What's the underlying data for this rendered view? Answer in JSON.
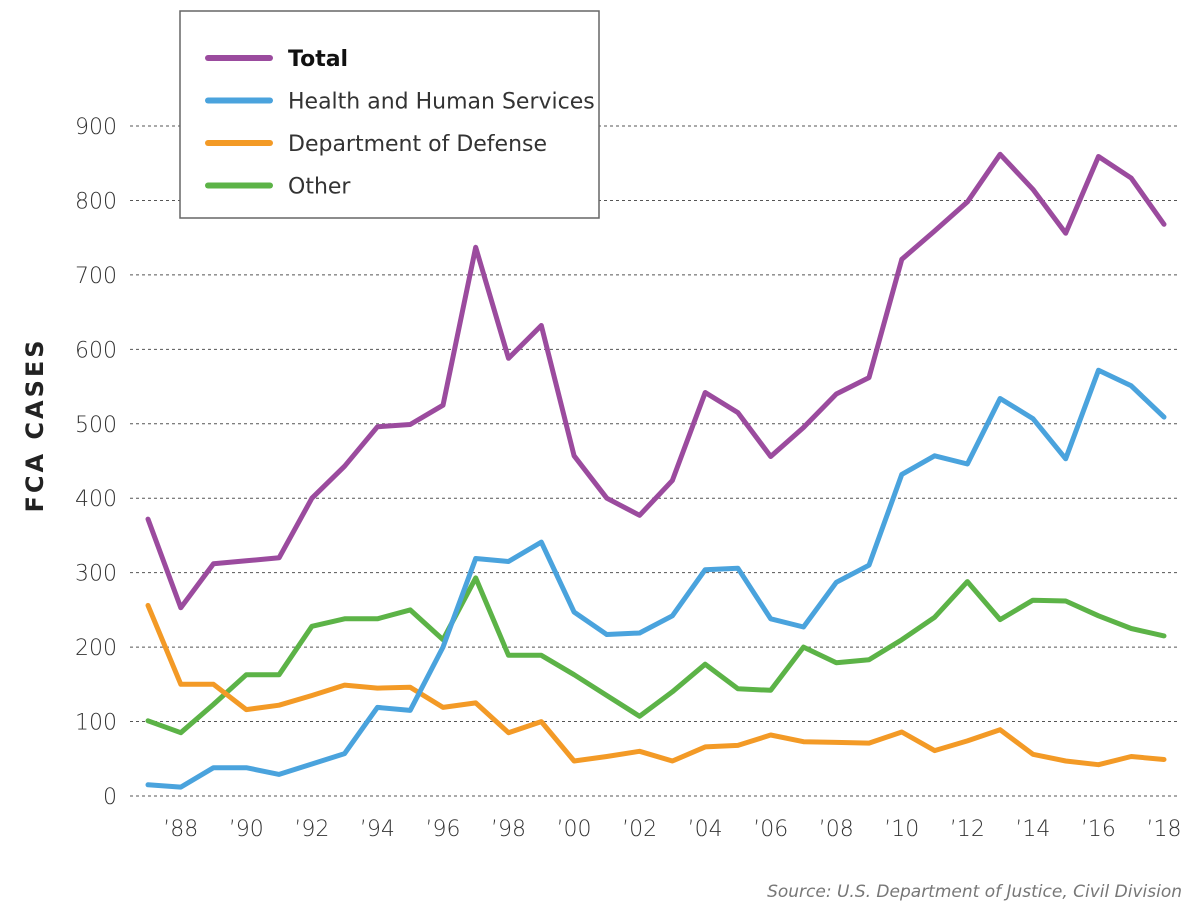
{
  "chart_data": {
    "type": "line",
    "title": "",
    "xlabel": "",
    "ylabel": "FCA CASES",
    "source": "Source: U.S. Department of Justice, Civil Division",
    "ylim": [
      0,
      900
    ],
    "xlim": [
      1987,
      2018
    ],
    "y_ticks": [
      0,
      100,
      200,
      300,
      400,
      500,
      600,
      700,
      800,
      900
    ],
    "x_ticks": [
      {
        "x": 1988,
        "label": "’88"
      },
      {
        "x": 1990,
        "label": "’90"
      },
      {
        "x": 1992,
        "label": "’92"
      },
      {
        "x": 1994,
        "label": "’94"
      },
      {
        "x": 1996,
        "label": "’96"
      },
      {
        "x": 1998,
        "label": "’98"
      },
      {
        "x": 2000,
        "label": "’00"
      },
      {
        "x": 2002,
        "label": "’02"
      },
      {
        "x": 2004,
        "label": "’04"
      },
      {
        "x": 2006,
        "label": "’06"
      },
      {
        "x": 2008,
        "label": "’08"
      },
      {
        "x": 2010,
        "label": "’10"
      },
      {
        "x": 2012,
        "label": "’12"
      },
      {
        "x": 2014,
        "label": "’14"
      },
      {
        "x": 2016,
        "label": "’16"
      },
      {
        "x": 2018,
        "label": "’18"
      }
    ],
    "grid": "horizontal dashed",
    "legend_position": "top-left",
    "x": [
      1987,
      1988,
      1989,
      1990,
      1991,
      1992,
      1993,
      1994,
      1995,
      1996,
      1997,
      1998,
      1999,
      2000,
      2001,
      2002,
      2003,
      2004,
      2005,
      2006,
      2007,
      2008,
      2009,
      2010,
      2011,
      2012,
      2013,
      2014,
      2015,
      2016,
      2017,
      2018
    ],
    "series": [
      {
        "name": "Total",
        "color": "#9b4b9e",
        "bold": true,
        "values": [
          372,
          253,
          312,
          316,
          320,
          400,
          443,
          496,
          499,
          525,
          737,
          588,
          632,
          457,
          400,
          377,
          424,
          542,
          515,
          456,
          495,
          540,
          562,
          721,
          759,
          798,
          862,
          815,
          756,
          859,
          830,
          768
        ]
      },
      {
        "name": "Health and Human Services",
        "color": "#4aa3dd",
        "bold": false,
        "values": [
          15,
          12,
          38,
          38,
          29,
          43,
          57,
          119,
          115,
          200,
          319,
          315,
          341,
          247,
          217,
          219,
          242,
          304,
          306,
          238,
          227,
          287,
          310,
          432,
          457,
          446,
          534,
          507,
          453,
          572,
          551,
          509
        ]
      },
      {
        "name": "Department of Defense",
        "color": "#f39a26",
        "bold": false,
        "values": [
          256,
          150,
          150,
          116,
          122,
          135,
          149,
          145,
          146,
          119,
          125,
          85,
          100,
          47,
          53,
          60,
          47,
          66,
          68,
          82,
          73,
          72,
          71,
          86,
          61,
          74,
          89,
          56,
          47,
          42,
          53,
          49
        ]
      },
      {
        "name": "Other",
        "color": "#5cb347",
        "bold": false,
        "values": [
          101,
          85,
          123,
          163,
          163,
          228,
          238,
          238,
          250,
          210,
          293,
          189,
          189,
          163,
          135,
          107,
          140,
          177,
          144,
          142,
          200,
          179,
          183,
          210,
          240,
          288,
          237,
          263,
          262,
          242,
          225,
          215
        ]
      }
    ]
  }
}
